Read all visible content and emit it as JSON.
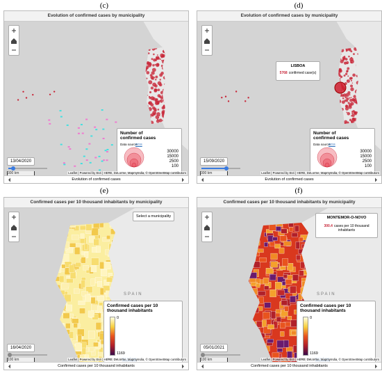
{
  "panels": [
    {
      "label": "(c)",
      "title": "Evolution of confirmed cases by municipality",
      "date": "13/04/2020",
      "legend": {
        "title": "Number of confirmed cases",
        "source_label": "Data source:",
        "source": "DGS",
        "values": [
          30000,
          15000,
          2500,
          100
        ]
      },
      "scale": [
        "300 km",
        "200 mi"
      ],
      "attribution": "Leaflet | Powered by Esri | HERE, DeLorme, MapmyIndia, © OpenStreetMap contributors",
      "footer": "Evolution of confirmed cases"
    },
    {
      "label": "(d)",
      "title": "Evolution of confirmed cases by municipality",
      "date": "15/09/2020",
      "popup": {
        "name": "LISBOA",
        "value": 5768,
        "text": "confirmed case(s)"
      },
      "legend": {
        "title": "Number of confirmed cases",
        "source_label": "Data source:",
        "source": "DGS",
        "values": [
          30000,
          15000,
          2500,
          100
        ]
      },
      "scale": [
        "300 km",
        "200 mi"
      ],
      "attribution": "Leaflet | Powered by Esri | HERE, DeLorme, MapmyIndia, © OpenStreetMap contributors",
      "footer": "Evolution of confirmed cases"
    },
    {
      "label": "(e)",
      "title": "Confirmed cases per 10 thousand inhabitants by municipality",
      "date": "16/04/2020",
      "button": "Select a municipality",
      "country": "SPAIN",
      "legend": {
        "title": "Confirmed cases per 10 thousand inhabitants",
        "source_label": "Data source:",
        "source": "DGS | INE",
        "min": 0,
        "max": 1169
      },
      "scale": [
        "100 km",
        "100 mi"
      ],
      "attribution": "Leaflet | Powered by Esri | HERE, DeLorme, MapmyIndia, © OpenStreetMap contributors",
      "footer": "Confirmed cases per 10 thousand inhabitants"
    },
    {
      "label": "(f)",
      "title": "Confirmed cases per 10 thousand inhabitants by municipality",
      "date": "05/01/2021",
      "popup": {
        "name": "MONTEMOR-O-NOVO",
        "value": 300.4,
        "text": "cases per 10 thousand inhabitants"
      },
      "country": "SPAIN",
      "legend": {
        "title": "Confirmed cases per 10 thousand inhabitants",
        "source_label": "Data source:",
        "source": "DGS | INE",
        "min": 0,
        "max": 1169
      },
      "scale": [
        "100 km",
        "100 mi"
      ],
      "attribution": "Leaflet | Powered by Esri | HERE, DeLorme, MapmyIndia, © OpenStreetMap contributors",
      "footer": "Confirmed cases per 10 thousand inhabitants"
    }
  ]
}
